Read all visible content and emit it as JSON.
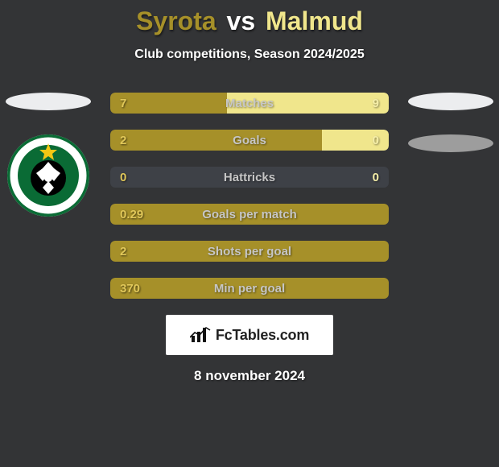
{
  "background_color": "#333436",
  "title": {
    "player1": "Syrota",
    "vs": "vs",
    "player2": "Malmud",
    "player1_color": "#a69029",
    "player2_color": "#f0e68c",
    "vs_color": "#ffffff",
    "fontsize": 32
  },
  "subtitle": {
    "text": "Club competitions, Season 2024/2025",
    "color": "#ffffff",
    "fontsize": 16
  },
  "left_oval_color": "#ecedef",
  "right_oval_top_color": "#ecedef",
  "right_oval_bottom_color": "#9d9d9d",
  "badge": {
    "ring_color": "#0a6b35",
    "star_color": "#f2c714",
    "ball_bg": "#000000",
    "text_color": "#0a6b35"
  },
  "neutral_bar_color": "#3e4147",
  "value_left_color": "#a69029",
  "value_right_color": "#f0e68c",
  "label_color": "#c6c6c6",
  "stats": [
    {
      "label": "Matches",
      "left_value": "7",
      "right_value": "9",
      "left_pct": 42,
      "right_pct": 58,
      "left_color": "#a69029",
      "right_color": "#f0e68c"
    },
    {
      "label": "Goals",
      "left_value": "2",
      "right_value": "0",
      "left_pct": 76,
      "right_pct": 24,
      "left_color": "#a69029",
      "right_color": "#f0e68c"
    },
    {
      "label": "Hattricks",
      "left_value": "0",
      "right_value": "0",
      "left_pct": 100,
      "right_pct": 0,
      "left_color": "#3e4147",
      "right_color": "#3e4147"
    },
    {
      "label": "Goals per match",
      "left_value": "0.29",
      "right_value": "",
      "left_pct": 100,
      "right_pct": 0,
      "left_color": "#a69029",
      "right_color": "#a69029"
    },
    {
      "label": "Shots per goal",
      "left_value": "2",
      "right_value": "",
      "left_pct": 100,
      "right_pct": 0,
      "left_color": "#a69029",
      "right_color": "#a69029"
    },
    {
      "label": "Min per goal",
      "left_value": "370",
      "right_value": "",
      "left_pct": 100,
      "right_pct": 0,
      "left_color": "#a69029",
      "right_color": "#a69029"
    }
  ],
  "branding": {
    "text": "FcTables.com",
    "text_color": "#222222",
    "bg_color": "#ffffff",
    "icon_color": "#111111"
  },
  "date": {
    "text": "8 november 2024",
    "color": "#ffffff",
    "fontsize": 17
  }
}
